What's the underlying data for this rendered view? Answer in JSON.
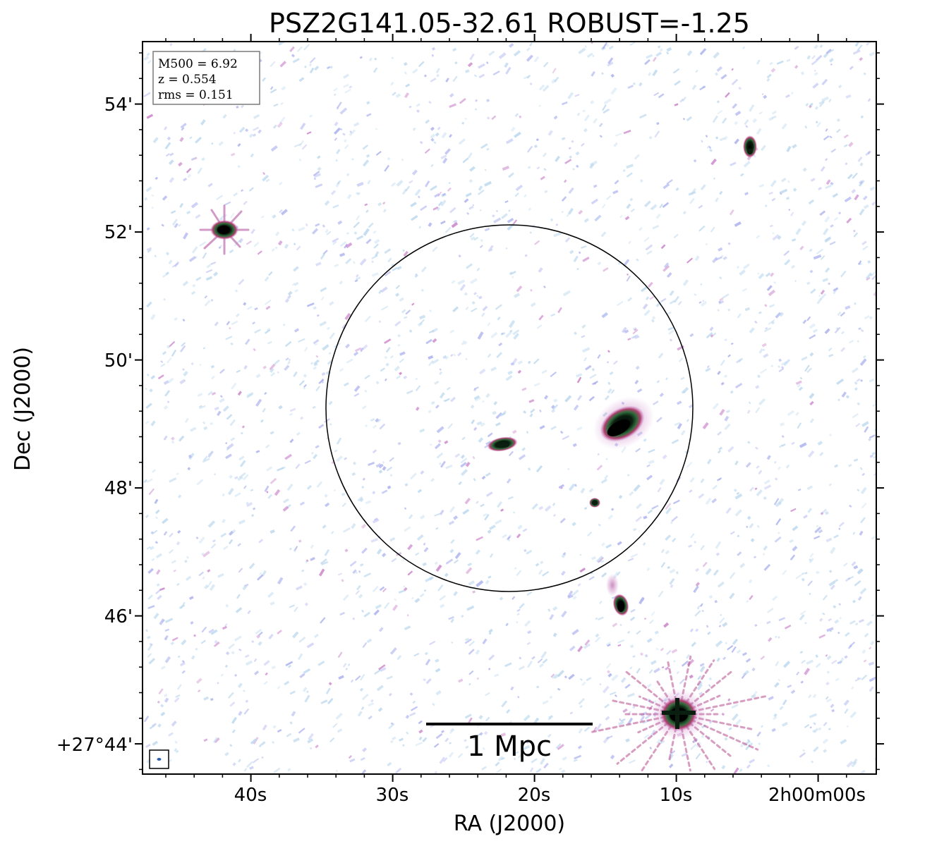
{
  "title": "PSZ2G141.05-32.61 ROBUST=-1.25",
  "axes": {
    "xlabel": "RA (J2000)",
    "ylabel": "Dec (J2000)",
    "xticks": [
      "40s",
      "30s",
      "20s",
      "10s",
      "2h00m00s"
    ],
    "yticks": [
      "54'",
      "52'",
      "50'",
      "48'",
      "46'",
      "+27°44'"
    ]
  },
  "info_box": {
    "line1": "M500 = 6.92",
    "line2": "z = 0.554",
    "line3": "rms = 0.151"
  },
  "scale_bar": {
    "label": "1 Mpc"
  },
  "colors": {
    "noise_light": "#bcd8ee",
    "noise_lavender": "#aab0ee",
    "halo_pink": "#c880c8",
    "halo_red": "#b04070",
    "core_green": "#2e6b3a",
    "core_black": "#000000"
  }
}
